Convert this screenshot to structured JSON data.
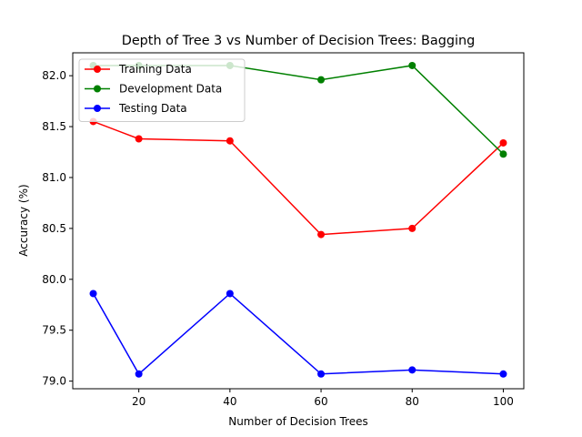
{
  "chart_data": {
    "type": "line",
    "title": "Depth of Tree 3 vs Number of Decision Trees: Bagging",
    "xlabel": "Number of Decision Trees",
    "ylabel": "Accuracy (%)",
    "x": [
      10,
      20,
      40,
      60,
      80,
      100
    ],
    "xlim": [
      5.5,
      104.5
    ],
    "ylim": [
      78.925,
      82.225
    ],
    "xticks": [
      20,
      40,
      60,
      80,
      100
    ],
    "yticks": [
      79.0,
      79.5,
      80.0,
      80.5,
      81.0,
      81.5,
      82.0
    ],
    "ytick_labels": [
      "79.0",
      "79.5",
      "80.0",
      "80.5",
      "81.0",
      "81.5",
      "82.0"
    ],
    "grid": false,
    "legend_position": "upper-left",
    "series": [
      {
        "name": "Training Data",
        "color": "#ff0000",
        "values": [
          81.55,
          81.38,
          81.36,
          80.44,
          80.5,
          81.34
        ]
      },
      {
        "name": "Development Data",
        "color": "#008000",
        "values": [
          82.1,
          82.1,
          82.1,
          81.96,
          82.1,
          81.23
        ]
      },
      {
        "name": "Testing Data",
        "color": "#0000ff",
        "values": [
          79.86,
          79.07,
          79.86,
          79.07,
          79.11,
          79.07
        ]
      }
    ]
  }
}
